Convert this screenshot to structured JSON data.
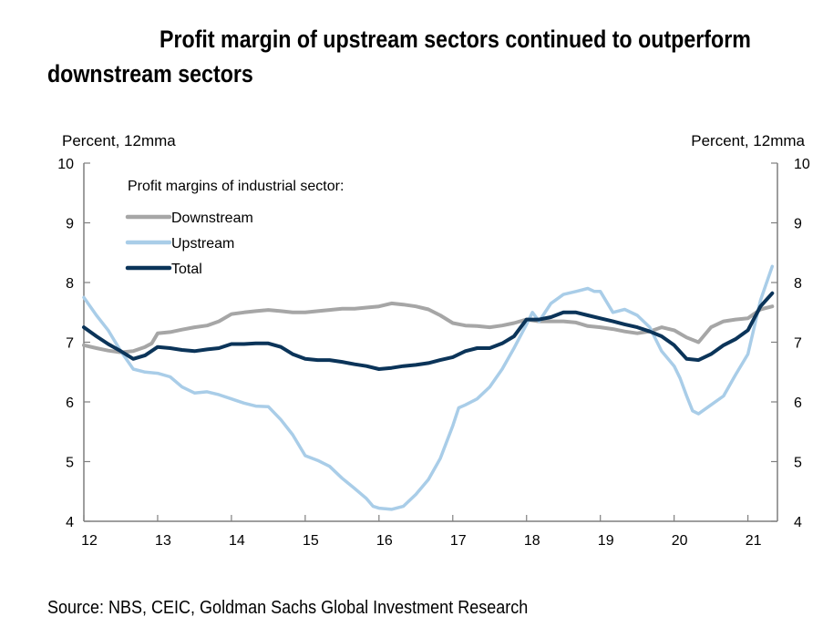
{
  "header": {
    "title_line1": "Profit margin of upstream sectors continued to outperform",
    "title_line2": "downstream sectors"
  },
  "footer": {
    "source": "Source: NBS, CEIC, Goldman Sachs Global Investment Research"
  },
  "chart_data": {
    "type": "line",
    "title": "Profit margin of upstream sectors continued to outperform downstream sectors",
    "y_left_unit": "Percent, 12mma",
    "y_right_unit": "Percent, 12mma",
    "ylim": [
      4,
      10
    ],
    "yticks": [
      4,
      5,
      6,
      7,
      8,
      9,
      10
    ],
    "xlim": [
      12,
      21.4
    ],
    "xticks": [
      12,
      13,
      14,
      15,
      16,
      17,
      18,
      19,
      20,
      21
    ],
    "xtick_labels": [
      "12",
      "13",
      "14",
      "15",
      "16",
      "17",
      "18",
      "19",
      "20",
      "21"
    ],
    "grid": false,
    "legend_title": "Profit margins of industrial sector:",
    "legend_position": "top-left",
    "series": [
      {
        "name": "Downstream",
        "color": "#a6a6a6",
        "x": [
          12.0,
          12.17,
          12.33,
          12.5,
          12.67,
          12.83,
          12.92,
          13.0,
          13.17,
          13.33,
          13.5,
          13.67,
          13.83,
          14.0,
          14.17,
          14.33,
          14.5,
          14.67,
          14.83,
          15.0,
          15.17,
          15.33,
          15.5,
          15.67,
          15.83,
          16.0,
          16.17,
          16.33,
          16.5,
          16.67,
          16.83,
          17.0,
          17.17,
          17.33,
          17.5,
          17.67,
          17.83,
          18.0,
          18.17,
          18.33,
          18.5,
          18.67,
          18.83,
          19.0,
          19.17,
          19.33,
          19.5,
          19.67,
          19.83,
          20.0,
          20.17,
          20.33,
          20.5,
          20.67,
          20.83,
          21.0,
          21.17,
          21.33
        ],
        "values": [
          6.95,
          6.9,
          6.86,
          6.83,
          6.85,
          6.92,
          6.98,
          7.15,
          7.17,
          7.21,
          7.25,
          7.28,
          7.35,
          7.47,
          7.5,
          7.52,
          7.54,
          7.52,
          7.5,
          7.5,
          7.52,
          7.54,
          7.56,
          7.56,
          7.58,
          7.6,
          7.65,
          7.63,
          7.6,
          7.55,
          7.45,
          7.32,
          7.28,
          7.27,
          7.25,
          7.28,
          7.32,
          7.38,
          7.35,
          7.35,
          7.35,
          7.33,
          7.27,
          7.25,
          7.22,
          7.18,
          7.15,
          7.18,
          7.25,
          7.2,
          7.08,
          7.0,
          7.25,
          7.35,
          7.38,
          7.4,
          7.55,
          7.6
        ]
      },
      {
        "name": "Upstream",
        "color": "#a9cde8",
        "x": [
          12.0,
          12.17,
          12.33,
          12.5,
          12.67,
          12.83,
          13.0,
          13.17,
          13.33,
          13.5,
          13.67,
          13.83,
          14.0,
          14.17,
          14.33,
          14.5,
          14.67,
          14.83,
          15.0,
          15.17,
          15.33,
          15.5,
          15.67,
          15.83,
          15.92,
          16.0,
          16.17,
          16.33,
          16.5,
          16.67,
          16.83,
          17.0,
          17.08,
          17.17,
          17.33,
          17.5,
          17.67,
          17.83,
          18.0,
          18.08,
          18.17,
          18.33,
          18.5,
          18.67,
          18.83,
          18.92,
          19.0,
          19.17,
          19.33,
          19.5,
          19.67,
          19.83,
          20.0,
          20.08,
          20.17,
          20.25,
          20.33,
          20.5,
          20.67,
          20.83,
          21.0,
          21.17,
          21.33
        ],
        "values": [
          7.75,
          7.45,
          7.2,
          6.85,
          6.55,
          6.5,
          6.48,
          6.42,
          6.25,
          6.15,
          6.17,
          6.12,
          6.05,
          5.98,
          5.93,
          5.92,
          5.7,
          5.45,
          5.1,
          5.02,
          4.92,
          4.72,
          4.55,
          4.38,
          4.25,
          4.22,
          4.2,
          4.25,
          4.45,
          4.7,
          5.05,
          5.6,
          5.9,
          5.95,
          6.05,
          6.25,
          6.55,
          6.9,
          7.3,
          7.5,
          7.35,
          7.65,
          7.8,
          7.85,
          7.9,
          7.85,
          7.85,
          7.5,
          7.55,
          7.45,
          7.25,
          6.85,
          6.6,
          6.4,
          6.1,
          5.85,
          5.8,
          5.95,
          6.1,
          6.45,
          6.8,
          7.7,
          8.27
        ]
      },
      {
        "name": "Total",
        "color": "#0b3459",
        "x": [
          12.0,
          12.17,
          12.33,
          12.5,
          12.67,
          12.83,
          13.0,
          13.17,
          13.33,
          13.5,
          13.67,
          13.83,
          14.0,
          14.17,
          14.33,
          14.5,
          14.67,
          14.83,
          15.0,
          15.17,
          15.33,
          15.5,
          15.67,
          15.83,
          16.0,
          16.17,
          16.33,
          16.5,
          16.67,
          16.83,
          17.0,
          17.17,
          17.33,
          17.5,
          17.67,
          17.83,
          18.0,
          18.17,
          18.33,
          18.5,
          18.67,
          18.83,
          19.0,
          19.17,
          19.33,
          19.5,
          19.67,
          19.83,
          20.0,
          20.17,
          20.33,
          20.5,
          20.67,
          20.83,
          21.0,
          21.17,
          21.33
        ],
        "values": [
          7.25,
          7.1,
          6.97,
          6.85,
          6.72,
          6.78,
          6.92,
          6.9,
          6.87,
          6.85,
          6.88,
          6.9,
          6.97,
          6.97,
          6.98,
          6.98,
          6.92,
          6.8,
          6.72,
          6.7,
          6.7,
          6.67,
          6.63,
          6.6,
          6.55,
          6.57,
          6.6,
          6.62,
          6.65,
          6.7,
          6.75,
          6.85,
          6.9,
          6.9,
          6.98,
          7.1,
          7.38,
          7.38,
          7.42,
          7.5,
          7.5,
          7.45,
          7.4,
          7.35,
          7.3,
          7.25,
          7.18,
          7.1,
          6.95,
          6.72,
          6.7,
          6.8,
          6.95,
          7.05,
          7.2,
          7.6,
          7.82
        ]
      }
    ]
  }
}
